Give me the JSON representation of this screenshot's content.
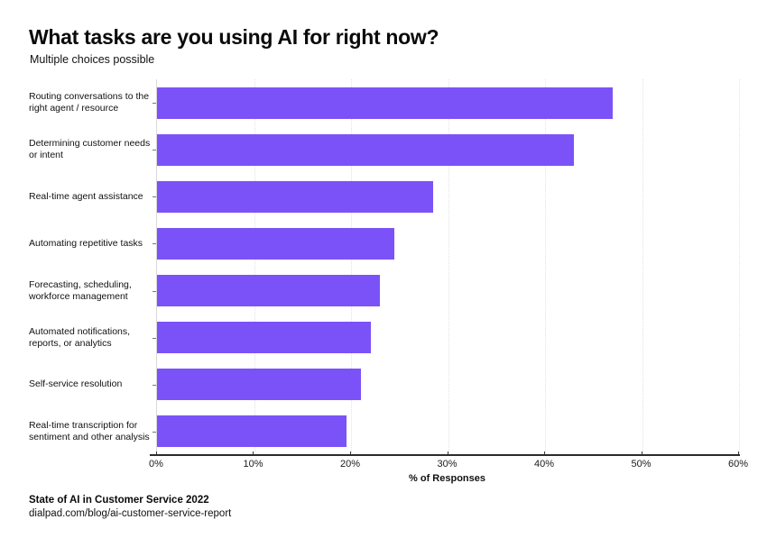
{
  "chart_data": {
    "type": "bar",
    "orientation": "horizontal",
    "title": "What tasks are you using AI for right now?",
    "subtitle": "Multiple choices possible",
    "xlabel": "% of Responses",
    "xlim": [
      0,
      60
    ],
    "xticks": [
      0,
      10,
      20,
      30,
      40,
      50,
      60
    ],
    "xtick_labels": [
      "0%",
      "10%",
      "20%",
      "30%",
      "40%",
      "50%",
      "60%"
    ],
    "grid": "vertical-dotted-light",
    "legend": "none",
    "bar_color": "#7B52F8",
    "categories": [
      "Routing conversations to the right agent / resource",
      "Determining customer needs or intent",
      "Real-time agent assistance",
      "Automating repetitive tasks",
      "Forecasting, scheduling, workforce management",
      "Automated notifications, reports, or analytics",
      "Self-service resolution",
      "Real-time transcription for sentiment and other analysis"
    ],
    "category_lines": [
      [
        "Routing conversations to the",
        "right agent / resource"
      ],
      [
        "Determining customer needs",
        "or intent"
      ],
      [
        "Real-time agent assistance"
      ],
      [
        "Automating repetitive tasks"
      ],
      [
        "Forecasting, scheduling,",
        "workforce management"
      ],
      [
        "Automated notifications,",
        "reports, or analytics"
      ],
      [
        "Self-service resolution"
      ],
      [
        "Real-time transcription for",
        "sentiment and other analysis"
      ]
    ],
    "values": [
      47,
      43,
      28.5,
      24.5,
      23,
      22,
      21,
      19.5
    ],
    "source": "State of AI in Customer Service 2022",
    "source_url": "dialpad.com/blog/ai-customer-service-report"
  },
  "colors": {
    "bar": "#7B52F8",
    "axis": "#2b2b2b",
    "grid": "#e2e2e2",
    "text": "#000000",
    "background": "#ffffff"
  }
}
